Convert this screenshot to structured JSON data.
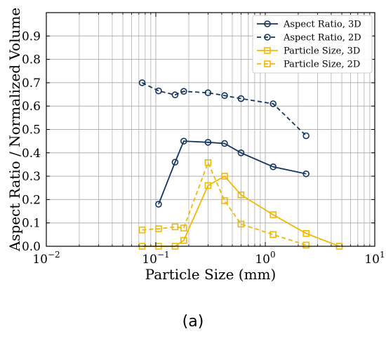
{
  "caption": "(a)",
  "colors": {
    "navy": "#14355e",
    "gold": "#f2b705",
    "grid": "#b0b0b0"
  },
  "chart_data": {
    "type": "line",
    "xlabel": "Particle Size (mm)",
    "ylabel": "Aspect Ratio / Normalized Volume",
    "xscale": "log",
    "xlim": [
      0.01,
      10
    ],
    "ylim": [
      0,
      1.0
    ],
    "x_ticks": [
      0.01,
      0.1,
      1,
      10
    ],
    "x_tick_labels": [
      [
        "10",
        "−2"
      ],
      [
        "10",
        "−1"
      ],
      [
        "10",
        "0"
      ],
      [
        "10",
        "1"
      ]
    ],
    "y_ticks": [
      0.0,
      0.1,
      0.2,
      0.3,
      0.4,
      0.5,
      0.6,
      0.7,
      0.8,
      0.9
    ],
    "y_tick_labels": [
      "0.0",
      "0.1",
      "0.2",
      "0.3",
      "0.4",
      "0.5",
      "0.6",
      "0.7",
      "0.8",
      "0.9"
    ],
    "grid": true,
    "legend_position": "top-right",
    "series": [
      {
        "name": "Aspect Ratio, 3D",
        "color": "#14355e",
        "dash": "solid",
        "marker": "circle",
        "points": [
          [
            0.106,
            0.18
          ],
          [
            0.15,
            0.36
          ],
          [
            0.18,
            0.45
          ],
          [
            0.3,
            0.445
          ],
          [
            0.425,
            0.44
          ],
          [
            0.6,
            0.4
          ],
          [
            1.18,
            0.34
          ],
          [
            2.36,
            0.31
          ]
        ]
      },
      {
        "name": "Aspect Ratio, 2D",
        "color": "#14355e",
        "dash": "dashed",
        "marker": "circle",
        "points": [
          [
            0.075,
            0.7
          ],
          [
            0.106,
            0.665
          ],
          [
            0.15,
            0.648
          ],
          [
            0.18,
            0.663
          ],
          [
            0.3,
            0.657
          ],
          [
            0.425,
            0.645
          ],
          [
            0.6,
            0.632
          ],
          [
            1.18,
            0.61
          ],
          [
            2.36,
            0.473
          ]
        ]
      },
      {
        "name": "Particle Size, 3D",
        "color": "#f2b705",
        "dash": "solid",
        "marker": "square",
        "points": [
          [
            0.075,
            0.0
          ],
          [
            0.106,
            0.0
          ],
          [
            0.15,
            0.0
          ],
          [
            0.18,
            0.025
          ],
          [
            0.3,
            0.26
          ],
          [
            0.425,
            0.3
          ],
          [
            0.6,
            0.22
          ],
          [
            1.18,
            0.135
          ],
          [
            2.36,
            0.055
          ],
          [
            4.75,
            0.0
          ]
        ]
      },
      {
        "name": "Particle Size, 2D",
        "color": "#f2b705",
        "dash": "dashed",
        "marker": "square",
        "points": [
          [
            0.075,
            0.07
          ],
          [
            0.106,
            0.075
          ],
          [
            0.15,
            0.083
          ],
          [
            0.18,
            0.078
          ],
          [
            0.3,
            0.358
          ],
          [
            0.425,
            0.195
          ],
          [
            0.6,
            0.095
          ],
          [
            1.18,
            0.05
          ],
          [
            2.36,
            0.005
          ]
        ]
      }
    ]
  }
}
